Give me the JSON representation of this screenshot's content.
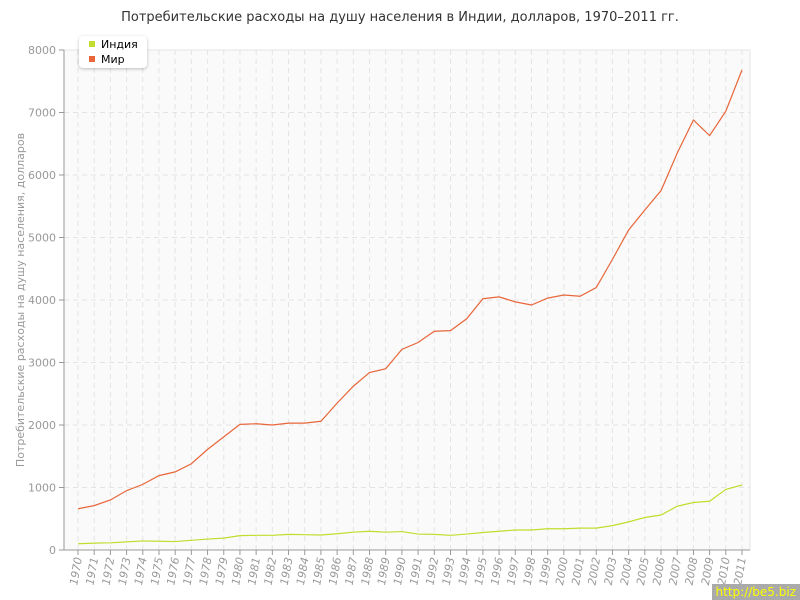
{
  "chart_data": {
    "type": "line",
    "title": "Потребительские расходы на душу населения в Индии, долларов, 1970–2011 гг.",
    "xlabel": "",
    "ylabel": "Потребительские расходы на душу населения, долларов",
    "ylim": [
      0,
      8000
    ],
    "yticks": [
      0,
      1000,
      2000,
      3000,
      4000,
      5000,
      6000,
      7000,
      8000
    ],
    "grid": true,
    "legend": "top-left",
    "x": [
      1970,
      1971,
      1972,
      1973,
      1974,
      1975,
      1976,
      1977,
      1978,
      1979,
      1980,
      1981,
      1982,
      1983,
      1984,
      1985,
      1986,
      1987,
      1988,
      1989,
      1990,
      1991,
      1992,
      1993,
      1994,
      1995,
      1996,
      1997,
      1998,
      1999,
      2000,
      2001,
      2002,
      2003,
      2004,
      2005,
      2006,
      2007,
      2008,
      2009,
      2010,
      2011
    ],
    "series": [
      {
        "name": "Индия",
        "color": "#c3dc2e",
        "values": [
          100,
          110,
          115,
          130,
          145,
          140,
          135,
          155,
          175,
          190,
          230,
          235,
          235,
          250,
          245,
          240,
          260,
          285,
          300,
          285,
          295,
          255,
          250,
          235,
          255,
          280,
          300,
          320,
          320,
          340,
          340,
          350,
          350,
          390,
          450,
          520,
          560,
          700,
          760,
          780,
          970,
          1040
        ]
      },
      {
        "name": "Мир",
        "color": "#e8663a",
        "values": [
          660,
          710,
          800,
          950,
          1050,
          1190,
          1250,
          1380,
          1610,
          1810,
          2010,
          2020,
          2000,
          2030,
          2030,
          2060,
          2350,
          2620,
          2840,
          2900,
          3210,
          3320,
          3500,
          3510,
          3700,
          4020,
          4050,
          3970,
          3920,
          4030,
          4080,
          4060,
          4200,
          4650,
          5120,
          5440,
          5750,
          6350,
          6880,
          6630,
          7020,
          7680
        ]
      }
    ]
  },
  "watermark": "http://be5.biz"
}
